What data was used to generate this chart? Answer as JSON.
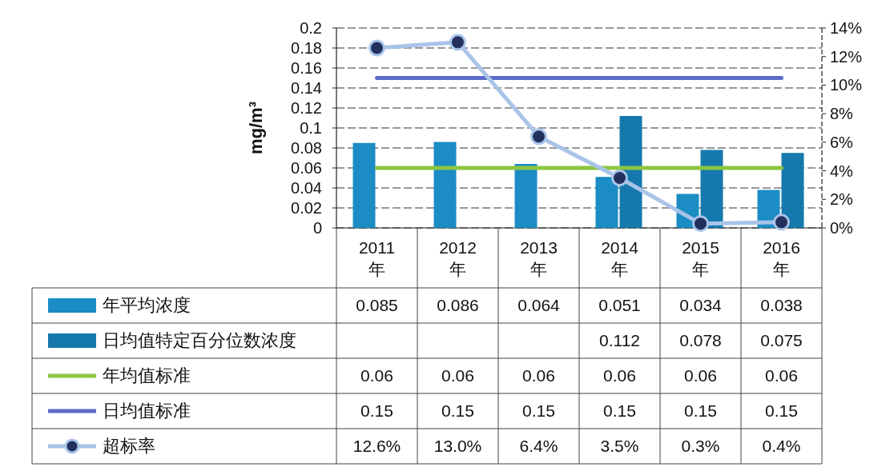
{
  "chart_data": {
    "type": "bar",
    "ylabel": "mg/m³",
    "categories": [
      "2011年",
      "2012年",
      "2013年",
      "2014年",
      "2015年",
      "2016年"
    ],
    "series": [
      {
        "name": "年平均浓度",
        "color": "#1b8cc4",
        "values": [
          0.085,
          0.086,
          0.064,
          0.051,
          0.034,
          0.038
        ],
        "value_labels": [
          "0.085",
          "0.086",
          "0.064",
          "0.051",
          "0.034",
          "0.038"
        ]
      },
      {
        "name": "日均值特定百分位数浓度",
        "color": "#1579ad",
        "values": [
          null,
          null,
          null,
          0.112,
          0.078,
          0.075
        ],
        "value_labels": [
          null,
          null,
          null,
          "0.112",
          "0.078",
          "0.075"
        ]
      },
      {
        "name": "年均值标准",
        "type": "line",
        "color": "#8cc63f",
        "values": [
          0.06,
          0.06,
          0.06,
          0.06,
          0.06,
          0.06
        ],
        "value_labels": [
          "0.06",
          "0.06",
          "0.06",
          "0.06",
          "0.06",
          "0.06"
        ]
      },
      {
        "name": "日均值标准",
        "type": "line",
        "color": "#5b6cc8",
        "values": [
          0.15,
          0.15,
          0.15,
          0.15,
          0.15,
          0.15
        ],
        "value_labels": [
          "0.15",
          "0.15",
          "0.15",
          "0.15",
          "0.15",
          "0.15"
        ]
      },
      {
        "name": "超标率",
        "type": "line",
        "axis": "y2",
        "marker": "circle",
        "color": "#a9c4e8",
        "values": [
          12.6,
          13.0,
          6.4,
          3.5,
          0.3,
          0.4
        ],
        "value_labels": [
          "12.6%",
          "13.0%",
          "6.4%",
          "3.5%",
          "0.3%",
          "0.4%"
        ]
      }
    ],
    "ylim": [
      0,
      0.2
    ],
    "yticks": [
      0,
      0.02,
      0.04,
      0.06,
      0.08,
      0.1,
      0.12,
      0.14,
      0.16,
      0.18,
      0.2
    ],
    "y2lim": [
      0,
      14
    ],
    "y2ticks": [
      {
        "value": 0,
        "label": "0%"
      },
      {
        "value": 2,
        "label": "2%"
      },
      {
        "value": 4,
        "label": "4%"
      },
      {
        "value": 6,
        "label": "6%"
      },
      {
        "value": 8,
        "label": "8%"
      },
      {
        "value": 10,
        "label": "10%"
      },
      {
        "value": 12,
        "label": "12%"
      },
      {
        "value": 14,
        "label": "14%"
      }
    ],
    "grid": "y",
    "legend": "bottom left"
  }
}
